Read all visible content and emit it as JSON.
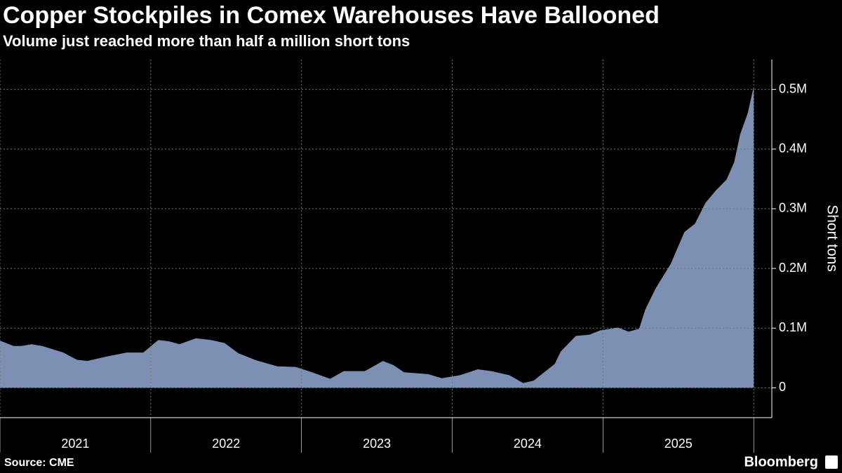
{
  "chart_data": {
    "type": "area",
    "title": "Copper Stockpiles in Comex Warehouses Have Ballooned",
    "subtitle": "Volume just reached more than half a million short tons",
    "y_label": "Short tons",
    "source": "Source: CME",
    "brand": "Bloomberg",
    "color": "#7b90b2",
    "grid": true,
    "x": [
      2021.0,
      2021.09,
      2021.14,
      2021.21,
      2021.28,
      2021.42,
      2021.51,
      2021.58,
      2021.7,
      2021.84,
      2021.95,
      2022.05,
      2022.12,
      2022.19,
      2022.3,
      2022.4,
      2022.49,
      2022.58,
      2022.7,
      2022.84,
      2022.96,
      2023.07,
      2023.19,
      2023.28,
      2023.42,
      2023.54,
      2023.61,
      2023.68,
      2023.84,
      2023.93,
      2024.05,
      2024.17,
      2024.26,
      2024.38,
      2024.47,
      2024.54,
      2024.61,
      2024.68,
      2024.72,
      2024.82,
      2024.91,
      2024.98,
      2025.1,
      2025.17,
      2025.24,
      2025.28,
      2025.35,
      2025.45,
      2025.54,
      2025.61,
      2025.68,
      2025.75,
      2025.82,
      2025.87,
      2025.91,
      2025.96,
      2026.0
    ],
    "values": [
      79000,
      70000,
      70000,
      73000,
      70000,
      59000,
      47000,
      45000,
      52000,
      59000,
      59000,
      80000,
      78000,
      73000,
      83000,
      80000,
      75000,
      58000,
      46000,
      36000,
      35000,
      26000,
      15000,
      28000,
      28000,
      45000,
      38000,
      26000,
      23000,
      16000,
      21000,
      31000,
      28000,
      21000,
      8000,
      12000,
      26000,
      40000,
      61000,
      87000,
      89000,
      96000,
      101000,
      94000,
      99000,
      131000,
      167000,
      208000,
      261000,
      275000,
      310000,
      331000,
      349000,
      378000,
      425000,
      460000,
      505000
    ],
    "xlim": [
      2021,
      2026.12
    ],
    "xticks": [
      2021,
      2022,
      2023,
      2024,
      2025
    ],
    "ylim": [
      -50000,
      550000
    ],
    "yticks": [
      {
        "value": 0,
        "label": "0"
      },
      {
        "value": 100000,
        "label": "0.1M"
      },
      {
        "value": 200000,
        "label": "0.2M"
      },
      {
        "value": 300000,
        "label": "0.3M"
      },
      {
        "value": 400000,
        "label": "0.4M"
      },
      {
        "value": 500000,
        "label": "0.5M"
      }
    ]
  }
}
